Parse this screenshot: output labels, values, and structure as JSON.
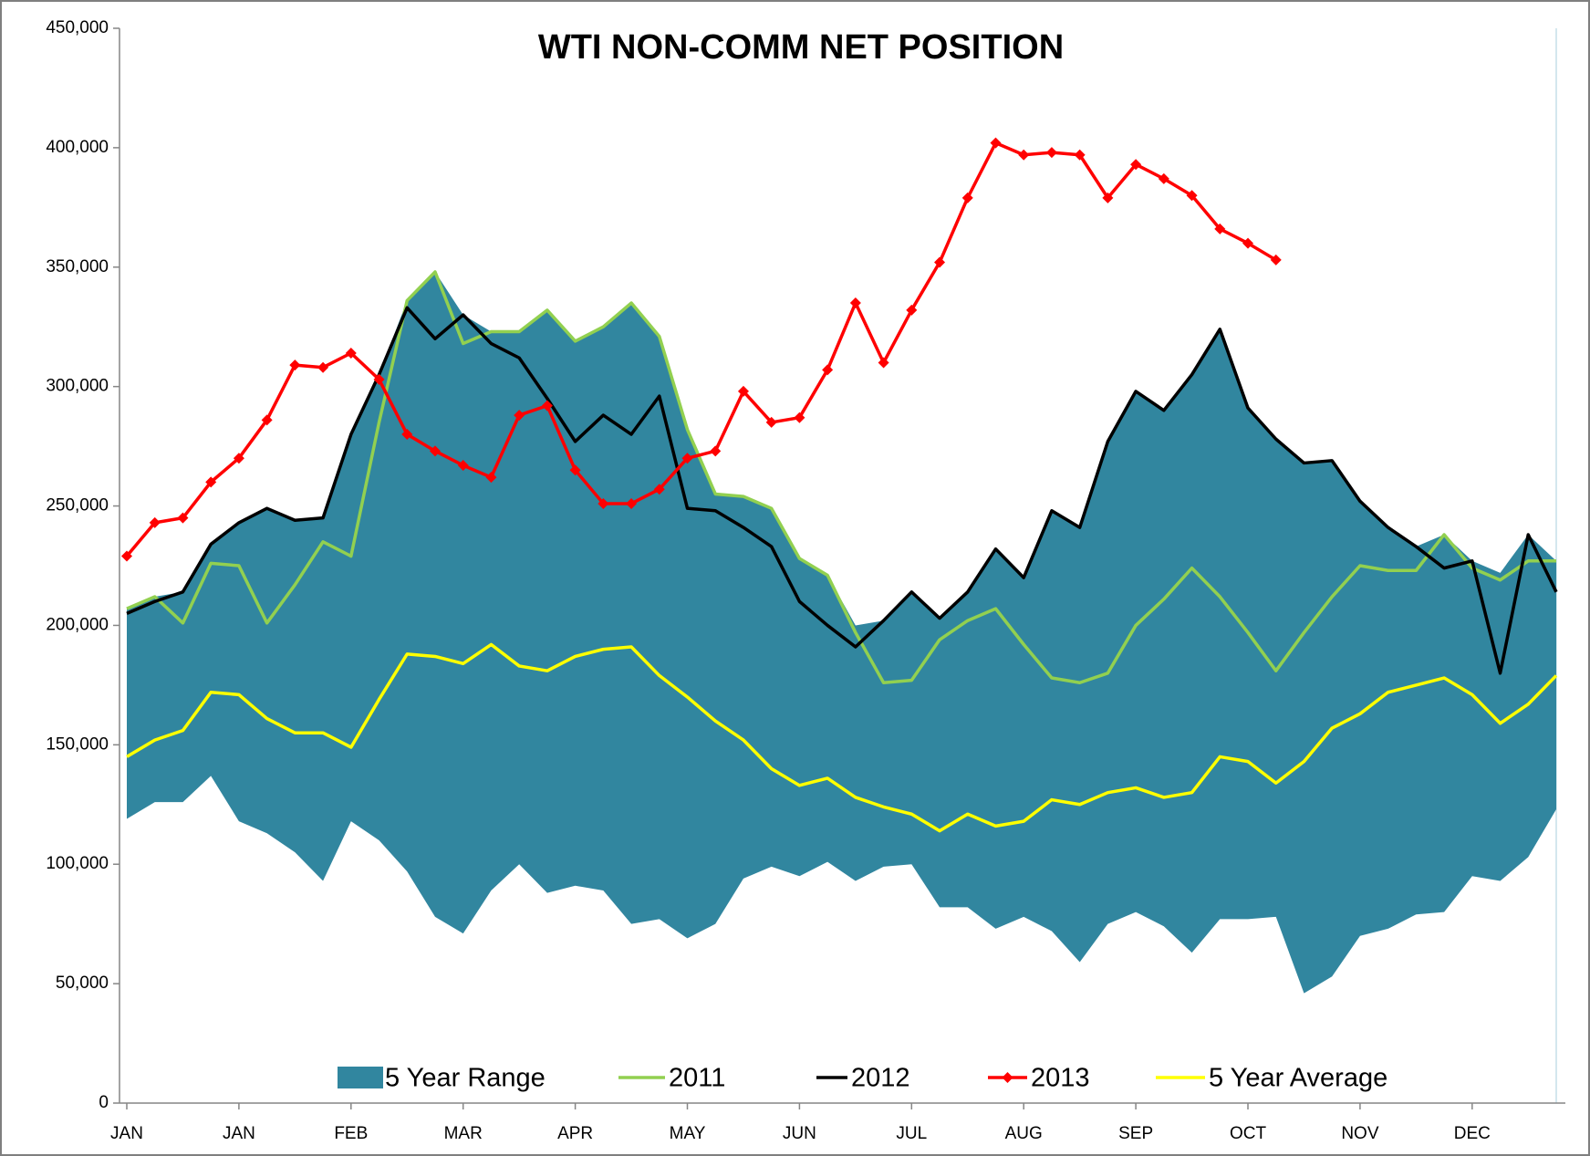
{
  "chart_data": {
    "type": "line",
    "title": "WTI NON-COMM NET  POSITION",
    "categories": [
      "JAN",
      null,
      null,
      null,
      "JAN",
      null,
      null,
      null,
      "FEB",
      null,
      null,
      null,
      "MAR",
      null,
      null,
      null,
      "APR",
      null,
      null,
      null,
      "MAY",
      null,
      null,
      null,
      "JUN",
      null,
      null,
      null,
      "JUL",
      null,
      null,
      null,
      "AUG",
      null,
      null,
      null,
      "SEP",
      null,
      null,
      null,
      "OCT",
      null,
      null,
      null,
      "NOV",
      null,
      null,
      null,
      "DEC",
      null,
      null,
      null
    ],
    "ylim": [
      0,
      450000
    ],
    "yticks": [
      0,
      {
        "value": 50000,
        "label": "50,000"
      },
      {
        "value": 100000,
        "label": "100,000"
      },
      {
        "value": 150000,
        "label": "150,000"
      },
      {
        "value": 200000,
        "label": "200,000"
      },
      {
        "value": 250000,
        "label": "250,000"
      },
      {
        "value": 300000,
        "label": "300,000"
      },
      {
        "value": 350000,
        "label": "350,000"
      },
      {
        "value": 400000,
        "label": "400,000"
      },
      {
        "value": 450000,
        "label": "450,000"
      }
    ],
    "legend": "bottom",
    "series": [
      {
        "name": "5 Year Range",
        "type": "area-range",
        "color": "#31869f",
        "high": [
          207000,
          212000,
          214000,
          234000,
          243000,
          249000,
          244000,
          245000,
          280000,
          305000,
          336000,
          348000,
          330000,
          323000,
          323000,
          332000,
          319000,
          325000,
          335000,
          321000,
          282000,
          255000,
          254000,
          249000,
          228000,
          221000,
          200000,
          202000,
          214000,
          203000,
          214000,
          232000,
          220000,
          248000,
          241000,
          277000,
          298000,
          290000,
          305000,
          324000,
          291000,
          278000,
          268000,
          269000,
          252000,
          241000,
          233000,
          238000,
          227000,
          222000,
          238000,
          227000
        ],
        "low": [
          119000,
          126000,
          126000,
          137000,
          118000,
          113000,
          105000,
          93000,
          118000,
          110000,
          97000,
          78000,
          71000,
          89000,
          100000,
          88000,
          91000,
          89000,
          75000,
          77000,
          69000,
          75000,
          94000,
          99000,
          95000,
          101000,
          93000,
          99000,
          100000,
          82000,
          82000,
          73000,
          78000,
          72000,
          59000,
          75000,
          80000,
          74000,
          63000,
          77000,
          77000,
          78000,
          46000,
          53000,
          70000,
          73000,
          79000,
          80000,
          95000,
          93000,
          103000,
          123000
        ]
      },
      {
        "name": "2011",
        "type": "line",
        "color": "#92d050",
        "values": [
          207000,
          212000,
          201000,
          226000,
          225000,
          201000,
          217000,
          235000,
          229000,
          285000,
          336000,
          348000,
          318000,
          323000,
          323000,
          332000,
          319000,
          325000,
          335000,
          321000,
          282000,
          255000,
          254000,
          249000,
          228000,
          221000,
          197000,
          176000,
          177000,
          194000,
          202000,
          207000,
          192000,
          178000,
          176000,
          180000,
          200000,
          211000,
          224000,
          212000,
          197000,
          181000,
          197000,
          212000,
          225000,
          223000,
          223000,
          238000,
          224000,
          219000,
          227000,
          227000
        ]
      },
      {
        "name": "2012",
        "type": "line",
        "color": "#000000",
        "values": [
          205000,
          210000,
          214000,
          234000,
          243000,
          249000,
          244000,
          245000,
          280000,
          305000,
          333000,
          320000,
          330000,
          318000,
          312000,
          295000,
          277000,
          288000,
          280000,
          296000,
          249000,
          248000,
          241000,
          233000,
          210000,
          200000,
          191000,
          202000,
          214000,
          203000,
          214000,
          232000,
          220000,
          248000,
          241000,
          277000,
          298000,
          290000,
          305000,
          324000,
          291000,
          278000,
          268000,
          269000,
          252000,
          241000,
          233000,
          224000,
          227000,
          180000,
          238000,
          214000
        ]
      },
      {
        "name": "2013",
        "type": "line",
        "marker": "diamond",
        "color": "#ff0000",
        "values": [
          229000,
          243000,
          245000,
          260000,
          270000,
          286000,
          309000,
          308000,
          314000,
          303000,
          280000,
          273000,
          267000,
          262000,
          288000,
          292000,
          265000,
          251000,
          251000,
          257000,
          270000,
          273000,
          298000,
          285000,
          287000,
          307000,
          335000,
          310000,
          332000,
          352000,
          379000,
          402000,
          397000,
          398000,
          397000,
          379000,
          393000,
          387000,
          380000,
          366000,
          360000,
          353000,
          null,
          null,
          null,
          null,
          null,
          null,
          null,
          null,
          null,
          null
        ]
      },
      {
        "name": "5 Year Average",
        "type": "line",
        "color": "#ffff00",
        "values": [
          145000,
          152000,
          156000,
          172000,
          171000,
          161000,
          155000,
          155000,
          149000,
          169000,
          188000,
          187000,
          184000,
          192000,
          183000,
          181000,
          187000,
          190000,
          191000,
          179000,
          170000,
          160000,
          152000,
          140000,
          133000,
          136000,
          128000,
          124000,
          121000,
          114000,
          121000,
          116000,
          118000,
          127000,
          125000,
          130000,
          132000,
          128000,
          130000,
          145000,
          143000,
          134000,
          143000,
          157000,
          163000,
          172000,
          175000,
          178000,
          171000,
          159000,
          167000,
          179000
        ]
      }
    ]
  }
}
